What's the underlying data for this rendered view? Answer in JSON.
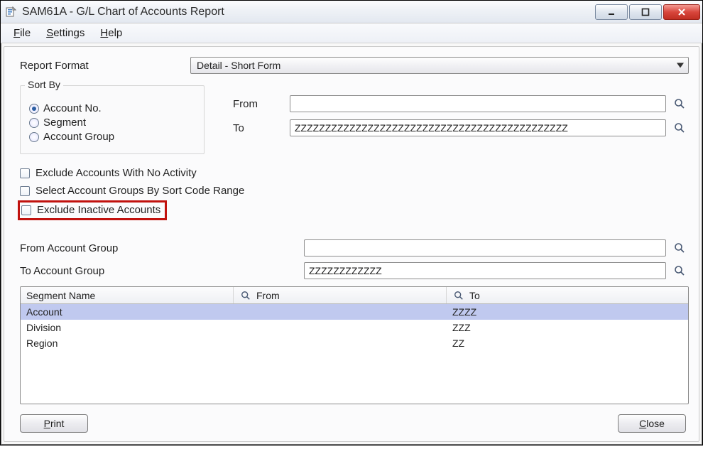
{
  "colors": {
    "highlight_border": "#c1120e",
    "selected_row_bg": "#c0c9ef",
    "close_btn_bg": "#d8463c"
  },
  "window": {
    "title": "SAM61A - G/L Chart of Accounts Report"
  },
  "menu": {
    "file": "File",
    "file_u": "F",
    "settings": "Settings",
    "settings_u": "S",
    "help": "Help",
    "help_u": "H"
  },
  "report_format": {
    "label": "Report Format",
    "value": "Detail - Short Form"
  },
  "sort_by": {
    "legend": "Sort By",
    "options": [
      {
        "label": "Account No.",
        "checked": true
      },
      {
        "label": "Segment",
        "checked": false
      },
      {
        "label": "Account Group",
        "checked": false
      }
    ]
  },
  "from_to": {
    "from_label": "From",
    "from_value": "",
    "to_label": "To",
    "to_value": "ZZZZZZZZZZZZZZZZZZZZZZZZZZZZZZZZZZZZZZZZZZZZZ"
  },
  "checks": {
    "exclude_no_activity": "Exclude Accounts With No Activity",
    "select_by_sort_code": "Select Account Groups By Sort Code Range",
    "exclude_inactive": "Exclude Inactive Accounts"
  },
  "account_group": {
    "from_label": "From Account Group",
    "from_value": "",
    "to_label": "To Account Group",
    "to_value": "ZZZZZZZZZZZZ"
  },
  "grid": {
    "headers": {
      "segment": "Segment Name",
      "from": "From",
      "to": "To"
    },
    "rows": [
      {
        "segment": "Account",
        "from": "",
        "to": "ZZZZ",
        "selected": true
      },
      {
        "segment": "Division",
        "from": "",
        "to": "ZZZ",
        "selected": false
      },
      {
        "segment": "Region",
        "from": "",
        "to": "ZZ",
        "selected": false
      }
    ]
  },
  "buttons": {
    "print": "Print",
    "print_u": "P",
    "close": "Close",
    "close_u": "C"
  }
}
